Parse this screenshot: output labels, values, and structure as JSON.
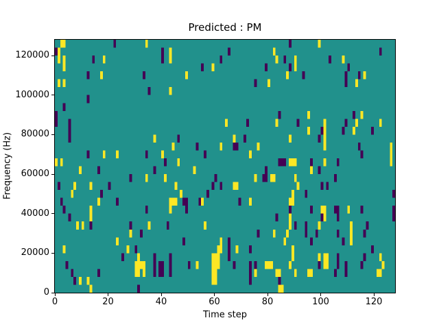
{
  "chart_data": {
    "type": "heatmap",
    "title": "Predicted : PM",
    "xlabel": "Time step",
    "ylabel": "Frequency (Hz)",
    "x_range": [
      0,
      128
    ],
    "y_range": [
      0,
      128000
    ],
    "x_ticks": [
      0,
      20,
      40,
      60,
      80,
      100,
      120
    ],
    "y_ticks": [
      0,
      20000,
      40000,
      60000,
      80000,
      100000,
      120000
    ],
    "grid": [
      128,
      32
    ],
    "legend": "none",
    "gridlines": false,
    "colormap": {
      "name": "viridis",
      "background": "#21918c",
      "high": "#fde725",
      "low": "#440154"
    },
    "cells_format": "[time_step, freq_row (0-31, bottom-up, 4000Hz per row), value (1=high/yellow, 0=low/purple), width_cols, height_rows]",
    "cells": [
      [
        0,
        30,
        0,
        1,
        1
      ],
      [
        1,
        29,
        1,
        1,
        2
      ],
      [
        2,
        31,
        1,
        1,
        1
      ],
      [
        3,
        31,
        1,
        1,
        1
      ],
      [
        1,
        26,
        1,
        1,
        1
      ],
      [
        3,
        26,
        1,
        1,
        1
      ],
      [
        3,
        28,
        1,
        1,
        2
      ],
      [
        14,
        29,
        0,
        1,
        1
      ],
      [
        18,
        29,
        1,
        1,
        1
      ],
      [
        12,
        27,
        0,
        1,
        1
      ],
      [
        17,
        27,
        1,
        1,
        1
      ],
      [
        22,
        31,
        0,
        1,
        1
      ],
      [
        34,
        31,
        1,
        1,
        1
      ],
      [
        33,
        27,
        0,
        1,
        1
      ],
      [
        40,
        29,
        0,
        1,
        2
      ],
      [
        35,
        25,
        0,
        1,
        1
      ],
      [
        12,
        24,
        0,
        1,
        1
      ],
      [
        3,
        23,
        0,
        1,
        1
      ],
      [
        5,
        21,
        0,
        1,
        1
      ],
      [
        0,
        21,
        0,
        1,
        2
      ],
      [
        43,
        29,
        1,
        1,
        2
      ],
      [
        65,
        30,
        0,
        1,
        1
      ],
      [
        62,
        29,
        0,
        1,
        1
      ],
      [
        55,
        28,
        0,
        1,
        1
      ],
      [
        59,
        28,
        1,
        1,
        1
      ],
      [
        49,
        27,
        1,
        1,
        1
      ],
      [
        82,
        30,
        1,
        1,
        1
      ],
      [
        83,
        29,
        1,
        1,
        1
      ],
      [
        79,
        28,
        0,
        1,
        1
      ],
      [
        75,
        26,
        0,
        1,
        1
      ],
      [
        80,
        26,
        1,
        1,
        1
      ],
      [
        43,
        25,
        1,
        1,
        1
      ],
      [
        84,
        22,
        0,
        1,
        1
      ],
      [
        64,
        21,
        1,
        1,
        1
      ],
      [
        72,
        21,
        0,
        1,
        1
      ],
      [
        83,
        21,
        1,
        1,
        1
      ],
      [
        88,
        31,
        0,
        1,
        1
      ],
      [
        99,
        31,
        1,
        1,
        1
      ],
      [
        122,
        30,
        0,
        1,
        1
      ],
      [
        86,
        29,
        0,
        1,
        1
      ],
      [
        90,
        28,
        1,
        1,
        2
      ],
      [
        88,
        28,
        0,
        1,
        1
      ],
      [
        87,
        27,
        1,
        1,
        1
      ],
      [
        93,
        27,
        0,
        1,
        1
      ],
      [
        103,
        29,
        0,
        1,
        1
      ],
      [
        108,
        29,
        1,
        1,
        1
      ],
      [
        110,
        28,
        0,
        1,
        1
      ],
      [
        114,
        27,
        0,
        1,
        1
      ],
      [
        109,
        26,
        0,
        1,
        2
      ],
      [
        116,
        27,
        1,
        1,
        1
      ],
      [
        113,
        26,
        1,
        1,
        1
      ],
      [
        95,
        22,
        1,
        1,
        1
      ],
      [
        112,
        22,
        0,
        1,
        1
      ],
      [
        115,
        22,
        1,
        1,
        1
      ],
      [
        91,
        21,
        0,
        1,
        1
      ],
      [
        109,
        21,
        0,
        1,
        1
      ],
      [
        101,
        21,
        1,
        1,
        1
      ],
      [
        113,
        21,
        1,
        1,
        1
      ],
      [
        122,
        21,
        1,
        1,
        1
      ],
      [
        5,
        20,
        0,
        1,
        1
      ],
      [
        5,
        19,
        0,
        1,
        1
      ],
      [
        37,
        19,
        1,
        1,
        1
      ],
      [
        12,
        17,
        0,
        1,
        1
      ],
      [
        18,
        17,
        1,
        1,
        1
      ],
      [
        23,
        17,
        1,
        1,
        1
      ],
      [
        34,
        17,
        0,
        1,
        1
      ],
      [
        40,
        17,
        1,
        1,
        1
      ],
      [
        0,
        16,
        1,
        1,
        1
      ],
      [
        2,
        16,
        1,
        1,
        1
      ],
      [
        41,
        16,
        0,
        1,
        1
      ],
      [
        9,
        15,
        1,
        1,
        1
      ],
      [
        16,
        15,
        0,
        1,
        1
      ],
      [
        37,
        15,
        0,
        1,
        1
      ],
      [
        41,
        14,
        1,
        1,
        1
      ],
      [
        28,
        14,
        0,
        1,
        1
      ],
      [
        34,
        14,
        1,
        1,
        1
      ],
      [
        1,
        13,
        0,
        1,
        1
      ],
      [
        7,
        13,
        1,
        1,
        1
      ],
      [
        13,
        13,
        1,
        1,
        1
      ],
      [
        20,
        13,
        0,
        1,
        1
      ],
      [
        6,
        12,
        1,
        1,
        1
      ],
      [
        17,
        12,
        0,
        1,
        1
      ],
      [
        16,
        11,
        1,
        1,
        1
      ],
      [
        2,
        11,
        0,
        1,
        1
      ],
      [
        23,
        11,
        0,
        1,
        1
      ],
      [
        46,
        19,
        0,
        1,
        1
      ],
      [
        44,
        18,
        1,
        1,
        1
      ],
      [
        53,
        18,
        0,
        1,
        1
      ],
      [
        56,
        17,
        0,
        1,
        1
      ],
      [
        62,
        18,
        1,
        1,
        1
      ],
      [
        67,
        19,
        1,
        1,
        1
      ],
      [
        71,
        19,
        0,
        1,
        1
      ],
      [
        67,
        18,
        0,
        2,
        1
      ],
      [
        76,
        18,
        1,
        1,
        1
      ],
      [
        73,
        17,
        1,
        1,
        1
      ],
      [
        46,
        16,
        1,
        1,
        1
      ],
      [
        52,
        15,
        1,
        1,
        1
      ],
      [
        84,
        16,
        0,
        2,
        1
      ],
      [
        79,
        15,
        0,
        1,
        1
      ],
      [
        75,
        14,
        1,
        1,
        1
      ],
      [
        60,
        14,
        0,
        1,
        1
      ],
      [
        62,
        13,
        0,
        1,
        1
      ],
      [
        78,
        14,
        0,
        2,
        1
      ],
      [
        81,
        14,
        1,
        2,
        1
      ],
      [
        67,
        13,
        1,
        2,
        1
      ],
      [
        59,
        13,
        0,
        1,
        1
      ],
      [
        45,
        13,
        1,
        1,
        1
      ],
      [
        47,
        12,
        1,
        1,
        1
      ],
      [
        57,
        12,
        0,
        1,
        1
      ],
      [
        43,
        11,
        1,
        3,
        1
      ],
      [
        48,
        11,
        0,
        2,
        1
      ],
      [
        54,
        11,
        0,
        1,
        1
      ],
      [
        55,
        11,
        1,
        1,
        1
      ],
      [
        69,
        11,
        0,
        1,
        1
      ],
      [
        73,
        11,
        1,
        1,
        1
      ],
      [
        95,
        20,
        1,
        1,
        1
      ],
      [
        100,
        20,
        0,
        1,
        1
      ],
      [
        101,
        20,
        1,
        1,
        1
      ],
      [
        108,
        20,
        0,
        1,
        1
      ],
      [
        112,
        20,
        1,
        1,
        1
      ],
      [
        119,
        20,
        0,
        1,
        1
      ],
      [
        88,
        19,
        1,
        1,
        1
      ],
      [
        99,
        19,
        0,
        1,
        1
      ],
      [
        101,
        18,
        1,
        1,
        2
      ],
      [
        114,
        18,
        0,
        1,
        1
      ],
      [
        115,
        17,
        0,
        1,
        1
      ],
      [
        126,
        16,
        1,
        1,
        3
      ],
      [
        88,
        16,
        1,
        3,
        1
      ],
      [
        86,
        16,
        0,
        1,
        1
      ],
      [
        96,
        16,
        0,
        1,
        1
      ],
      [
        101,
        16,
        1,
        1,
        1
      ],
      [
        106,
        16,
        0,
        1,
        1
      ],
      [
        96,
        15,
        1,
        1,
        1
      ],
      [
        99,
        15,
        0,
        1,
        1
      ],
      [
        105,
        14,
        0,
        1,
        1
      ],
      [
        90,
        14,
        1,
        1,
        1
      ],
      [
        91,
        13,
        1,
        1,
        1
      ],
      [
        100,
        13,
        0,
        1,
        1
      ],
      [
        102,
        13,
        0,
        1,
        1
      ],
      [
        89,
        12,
        1,
        1,
        1
      ],
      [
        94,
        12,
        0,
        1,
        1
      ],
      [
        88,
        11,
        1,
        2,
        1
      ],
      [
        96,
        10,
        0,
        1,
        1
      ],
      [
        106,
        10,
        0,
        1,
        1
      ],
      [
        110,
        10,
        1,
        1,
        1
      ],
      [
        127,
        12,
        0,
        1,
        1
      ],
      [
        3,
        10,
        0,
        1,
        1
      ],
      [
        13,
        10,
        1,
        1,
        1
      ],
      [
        5,
        9,
        0,
        1,
        1
      ],
      [
        13,
        9,
        1,
        1,
        1
      ],
      [
        8,
        8,
        1,
        1,
        1
      ],
      [
        10,
        8,
        1,
        1,
        1
      ],
      [
        13,
        8,
        0,
        1,
        1
      ],
      [
        34,
        10,
        0,
        1,
        1
      ],
      [
        28,
        8,
        0,
        1,
        1
      ],
      [
        35,
        8,
        1,
        1,
        1
      ],
      [
        42,
        8,
        0,
        1,
        1
      ],
      [
        28,
        7,
        1,
        1,
        1
      ],
      [
        32,
        7,
        0,
        1,
        1
      ],
      [
        23,
        6,
        1,
        1,
        1
      ],
      [
        3,
        5,
        1,
        1,
        1
      ],
      [
        27,
        5,
        1,
        1,
        1
      ],
      [
        30,
        5,
        0,
        1,
        1
      ],
      [
        25,
        4,
        0,
        1,
        1
      ],
      [
        30,
        2,
        1,
        1,
        2
      ],
      [
        31,
        2,
        1,
        1,
        3
      ],
      [
        32,
        3,
        1,
        1,
        1
      ],
      [
        33,
        2,
        1,
        1,
        2
      ],
      [
        37,
        2,
        0,
        1,
        3
      ],
      [
        39,
        2,
        0,
        2,
        2
      ],
      [
        4,
        3,
        0,
        1,
        1
      ],
      [
        6,
        2,
        0,
        1,
        1
      ],
      [
        16,
        2,
        0,
        1,
        1
      ],
      [
        9,
        1,
        1,
        1,
        1
      ],
      [
        7,
        1,
        0,
        1,
        1
      ],
      [
        12,
        1,
        1,
        1,
        1
      ],
      [
        13,
        0,
        1,
        1,
        1
      ],
      [
        31,
        0,
        0,
        1,
        1
      ],
      [
        43,
        10,
        1,
        1,
        1
      ],
      [
        49,
        10,
        0,
        1,
        1
      ],
      [
        83,
        9,
        0,
        1,
        1
      ],
      [
        56,
        8,
        1,
        1,
        1
      ],
      [
        76,
        7,
        0,
        1,
        1
      ],
      [
        82,
        7,
        1,
        1,
        1
      ],
      [
        48,
        6,
        0,
        1,
        1
      ],
      [
        62,
        5,
        1,
        1,
        2
      ],
      [
        61,
        4,
        1,
        1,
        2
      ],
      [
        65,
        4,
        0,
        1,
        3
      ],
      [
        68,
        5,
        1,
        1,
        1
      ],
      [
        73,
        5,
        0,
        1,
        1
      ],
      [
        43,
        2,
        0,
        1,
        3
      ],
      [
        59,
        1,
        1,
        2,
        4
      ],
      [
        61,
        3,
        1,
        1,
        2
      ],
      [
        50,
        3,
        0,
        1,
        1
      ],
      [
        53,
        3,
        1,
        1,
        1
      ],
      [
        67,
        3,
        0,
        1,
        1
      ],
      [
        73,
        1,
        0,
        1,
        3
      ],
      [
        75,
        3,
        0,
        1,
        1
      ],
      [
        75,
        2,
        1,
        1,
        1
      ],
      [
        79,
        3,
        1,
        3,
        1
      ],
      [
        83,
        2,
        1,
        2,
        1
      ],
      [
        84,
        1,
        0,
        1,
        1
      ],
      [
        84,
        0,
        1,
        2,
        1
      ],
      [
        88,
        10,
        0,
        1,
        1
      ],
      [
        88,
        9,
        1,
        1,
        1
      ],
      [
        88,
        8,
        1,
        1,
        1
      ],
      [
        87,
        7,
        1,
        1,
        1
      ],
      [
        86,
        6,
        1,
        1,
        1
      ],
      [
        89,
        5,
        1,
        1,
        1
      ],
      [
        89,
        4,
        1,
        1,
        1
      ],
      [
        88,
        3,
        1,
        1,
        1
      ],
      [
        90,
        2,
        1,
        1,
        1
      ],
      [
        90,
        8,
        0,
        1,
        1
      ],
      [
        94,
        7,
        0,
        1,
        2
      ],
      [
        96,
        6,
        0,
        1,
        1
      ],
      [
        98,
        7,
        0,
        1,
        1
      ],
      [
        99,
        8,
        1,
        1,
        1
      ],
      [
        100,
        10,
        1,
        2,
        1
      ],
      [
        105,
        10,
        0,
        1,
        1
      ],
      [
        115,
        10,
        0,
        1,
        1
      ],
      [
        127,
        10,
        0,
        1,
        1
      ],
      [
        127,
        9,
        0,
        1,
        1
      ],
      [
        100,
        9,
        0,
        1,
        1
      ],
      [
        101,
        9,
        1,
        1,
        1
      ],
      [
        106,
        9,
        0,
        1,
        1
      ],
      [
        111,
        6,
        1,
        1,
        3
      ],
      [
        117,
        8,
        0,
        1,
        1
      ],
      [
        116,
        7,
        0,
        1,
        1
      ],
      [
        106,
        7,
        0,
        1,
        1
      ],
      [
        108,
        6,
        0,
        1,
        1
      ],
      [
        119,
        5,
        0,
        1,
        1
      ],
      [
        116,
        4,
        0,
        1,
        1
      ],
      [
        115,
        3,
        0,
        1,
        1
      ],
      [
        122,
        4,
        1,
        1,
        1
      ],
      [
        123,
        3,
        1,
        1,
        1
      ],
      [
        109,
        2,
        0,
        1,
        2
      ],
      [
        105,
        2,
        0,
        1,
        1
      ],
      [
        95,
        2,
        1,
        2,
        1
      ],
      [
        121,
        2,
        1,
        2,
        1
      ],
      [
        99,
        4,
        1,
        1,
        1
      ],
      [
        99,
        3,
        0,
        1,
        1
      ],
      [
        101,
        3,
        1,
        2,
        2
      ],
      [
        106,
        3,
        0,
        1,
        2
      ]
    ]
  }
}
